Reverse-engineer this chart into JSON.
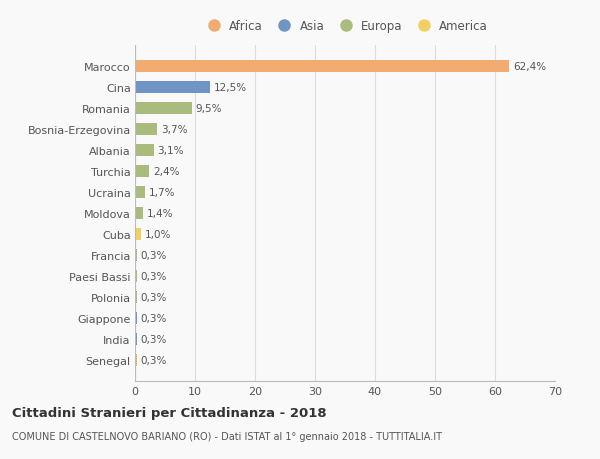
{
  "categories": [
    "Marocco",
    "Cina",
    "Romania",
    "Bosnia-Erzegovina",
    "Albania",
    "Turchia",
    "Ucraina",
    "Moldova",
    "Cuba",
    "Francia",
    "Paesi Bassi",
    "Polonia",
    "Giappone",
    "India",
    "Senegal"
  ],
  "values": [
    62.4,
    12.5,
    9.5,
    3.7,
    3.1,
    2.4,
    1.7,
    1.4,
    1.0,
    0.3,
    0.3,
    0.3,
    0.3,
    0.3,
    0.3
  ],
  "labels": [
    "62,4%",
    "12,5%",
    "9,5%",
    "3,7%",
    "3,1%",
    "2,4%",
    "1,7%",
    "1,4%",
    "1,0%",
    "0,3%",
    "0,3%",
    "0,3%",
    "0,3%",
    "0,3%",
    "0,3%"
  ],
  "continents": [
    "Africa",
    "Asia",
    "Europa",
    "Europa",
    "Europa",
    "Europa",
    "Europa",
    "Europa",
    "America",
    "Europa",
    "Europa",
    "Europa",
    "Asia",
    "Asia",
    "Africa"
  ],
  "continent_colors": {
    "Africa": "#F2AC72",
    "Asia": "#7094C4",
    "Europa": "#AABB7E",
    "America": "#F0D060"
  },
  "legend_order": [
    "Africa",
    "Asia",
    "Europa",
    "America"
  ],
  "title1": "Cittadini Stranieri per Cittadinanza - 2018",
  "title2": "COMUNE DI CASTELNOVO BARIANO (RO) - Dati ISTAT al 1° gennaio 2018 - TUTTITALIA.IT",
  "xlim": [
    0,
    70
  ],
  "xticks": [
    0,
    10,
    20,
    30,
    40,
    50,
    60,
    70
  ],
  "bg_color": "#f9f9f9",
  "grid_color": "#dddddd"
}
